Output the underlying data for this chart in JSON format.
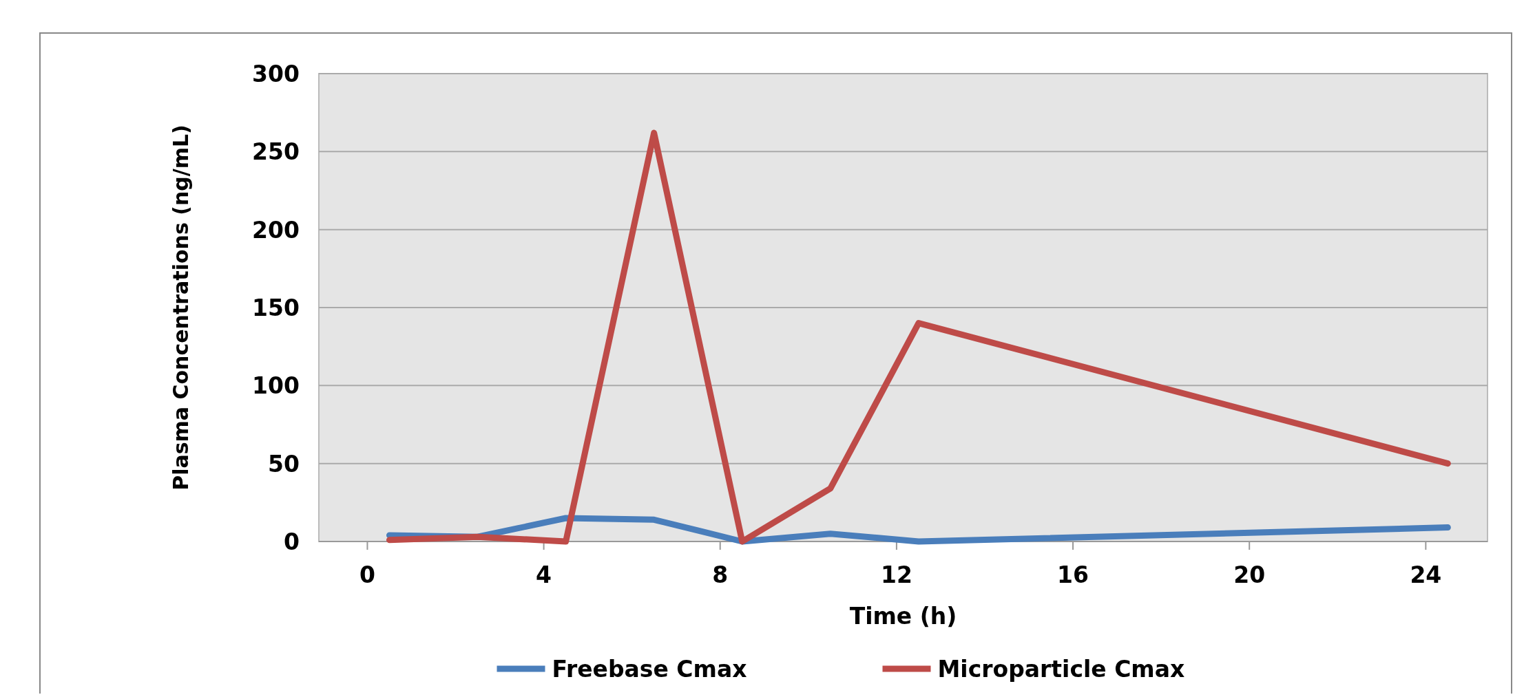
{
  "chart_data": {
    "type": "line",
    "xlabel": "Time (h)",
    "ylabel": "Plasma Concentrations (ng/mL)",
    "x": [
      0.5,
      2.5,
      4.5,
      6.5,
      8.5,
      10.5,
      12.5,
      24.5
    ],
    "series": [
      {
        "name": "Freebase Cmax",
        "color": "#4a7ebb",
        "values": [
          4,
          3,
          15,
          14,
          0,
          5,
          0,
          9
        ]
      },
      {
        "name": "Microparticle Cmax",
        "color": "#be4b48",
        "values": [
          1,
          3,
          0,
          262,
          0,
          34,
          140,
          50
        ]
      }
    ],
    "xlim": [
      -1.1,
      25.4
    ],
    "xticks": [
      0,
      4,
      8,
      12,
      16,
      20,
      24
    ],
    "ylim": [
      0,
      300
    ],
    "yticks": [
      0,
      50,
      100,
      150,
      200,
      250,
      300
    ],
    "grid": "y",
    "legend": "bottom",
    "marker": "none",
    "line_style": "solid"
  }
}
